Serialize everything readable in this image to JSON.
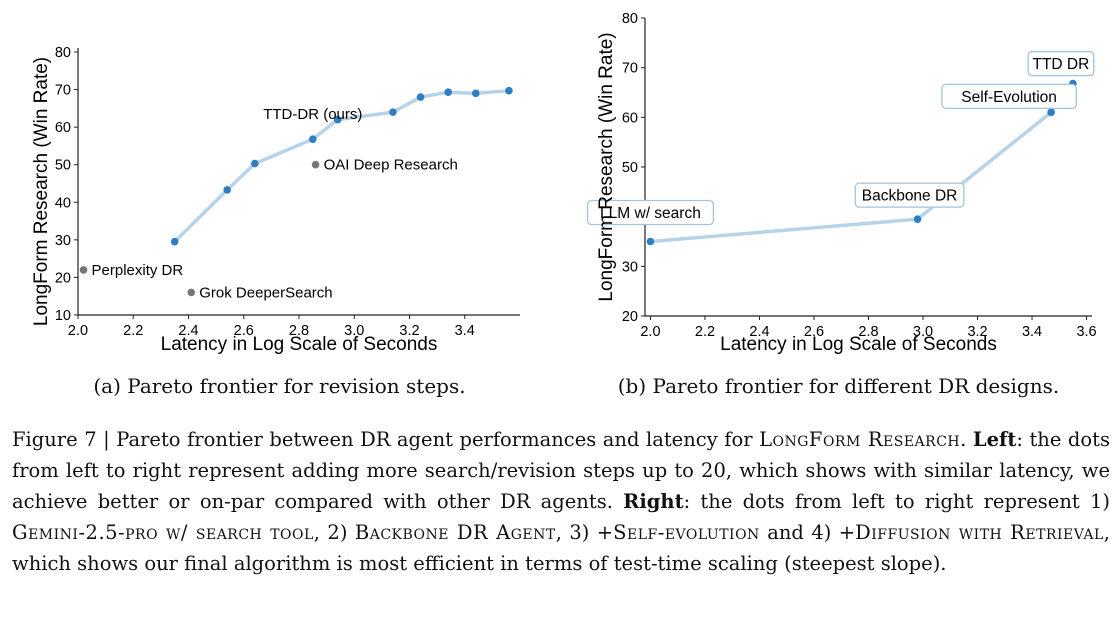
{
  "chart_data": [
    {
      "type": "line",
      "ylabel": "LongForm Research (Win Rate)",
      "xlabel": "Latency in Log Scale of Seconds",
      "xlim": [
        2.0,
        3.6
      ],
      "ylim": [
        10,
        80
      ],
      "x_ticks": [
        "2.0",
        "2.2",
        "2.4",
        "2.6",
        "2.8",
        "3.0",
        "3.2",
        "3.4"
      ],
      "y_ticks": [
        "10",
        "20",
        "30",
        "40",
        "50",
        "60",
        "70",
        "80"
      ],
      "x": [
        2.35,
        2.54,
        2.64,
        2.85,
        2.94,
        3.14,
        3.24,
        3.34,
        3.44,
        3.56
      ],
      "values": [
        29.5,
        43.3,
        50.3,
        56.8,
        62.0,
        64.0,
        68.0,
        69.3,
        69.0,
        69.7
      ],
      "series_label": "TTD-DR (ours)",
      "series_label_at": [
        2.85,
        63.5
      ],
      "others": [
        {
          "name": "Perplexity DR",
          "x": 2.02,
          "y": 22.0
        },
        {
          "name": "Grok DeeperSearch",
          "x": 2.41,
          "y": 16.0
        },
        {
          "name": "OAI Deep Research",
          "x": 2.86,
          "y": 50.0
        }
      ],
      "caption": "(a) Pareto frontier for revision steps."
    },
    {
      "type": "line",
      "ylabel": "LongForm Research (Win Rate)",
      "xlabel": "Latency in Log Scale of Seconds",
      "xlim": [
        1.98,
        3.62
      ],
      "ylim": [
        20,
        80
      ],
      "x_ticks": [
        "2.0",
        "2.2",
        "2.4",
        "2.6",
        "2.8",
        "3.0",
        "3.2",
        "3.4",
        "3.6"
      ],
      "y_ticks": [
        "20",
        "30",
        "40",
        "50",
        "60",
        "70",
        "80"
      ],
      "x": [
        2.0,
        2.98,
        3.47,
        3.55
      ],
      "values": [
        35.0,
        39.5,
        61.0,
        66.8
      ],
      "point_labels": [
        "LLM w/ search",
        "Backbone DR",
        "Self-Evolution",
        "TTD DR"
      ],
      "caption": "(b) Pareto frontier for different DR designs."
    }
  ],
  "figure_caption": {
    "label": "Figure 7 | Pareto frontier between DR agent performances and latency for ",
    "sc_benchmark": "LongForm Research",
    "t1": ". ",
    "left_label": "Left",
    "t2": ": the dots from left to right represent adding more search/revision steps up to 20, which shows with similar latency, we achieve better or on-par compared with other DR agents. ",
    "right_label": "Right",
    "t3": ": the dots from left to right represent 1) ",
    "sc_gemini": "Gemini-2.5-pro w/ search tool",
    "t4": ", 2) ",
    "sc_backbone": "Backbone DR Agent",
    "t5": ", 3) +",
    "sc_selfevo": "Self-evolution",
    "t6": " and 4) +",
    "sc_diffusion": "Diffusion with Retrieval",
    "t7": ", which shows our final algorithm is most efficient in terms of test-time scaling (steepest slope)."
  },
  "colors": {
    "series_line": "#b7d3ea",
    "series_point": "#2f7ec1",
    "other_point": "#777777",
    "label_box_border": "#a3c3de"
  }
}
